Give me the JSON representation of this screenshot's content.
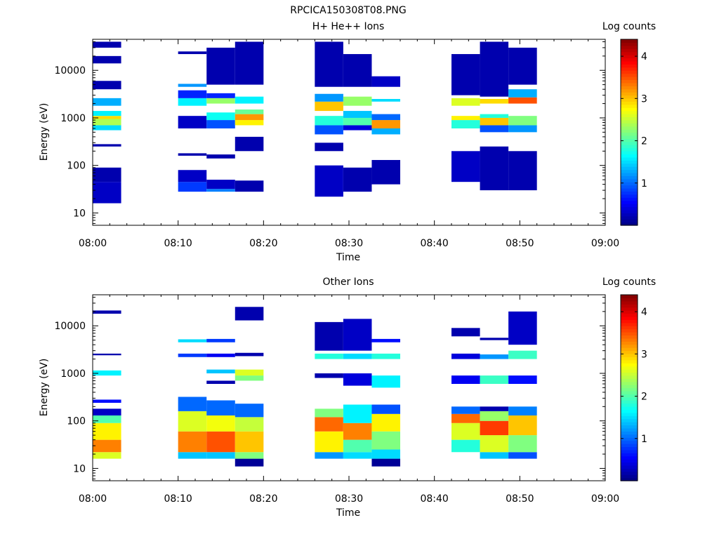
{
  "title": "RPCICA150308T08.PNG",
  "colorbar": {
    "label": "Log counts",
    "ticks": [
      1,
      2,
      3,
      4
    ],
    "range": [
      0,
      4.4
    ]
  },
  "chart_data": [
    {
      "type": "heatmap",
      "title": "H+ He++ Ions",
      "xlabel": "Time",
      "ylabel": "Energy (eV)",
      "yscale": "log",
      "ylim": [
        5.5,
        45000
      ],
      "xlim": [
        "08:00",
        "09:00"
      ],
      "xticks": [
        "08:00",
        "08:10",
        "08:20",
        "08:30",
        "08:40",
        "08:50",
        "09:00"
      ],
      "yticks": [
        10,
        100,
        1000,
        10000
      ],
      "time_bins": [
        {
          "start": "08:00:00",
          "end": "08:03:20",
          "bands": [
            [
              16,
              45,
              0.3
            ],
            [
              45,
              90,
              0.2
            ],
            [
              250,
              280,
              0.2
            ],
            [
              550,
              700,
              1.5
            ],
            [
              700,
              950,
              2.4
            ],
            [
              950,
              1100,
              2.9
            ],
            [
              1100,
              1400,
              1.6
            ],
            [
              1800,
              2600,
              1.3
            ],
            [
              4000,
              6000,
              0.2
            ],
            [
              14000,
              20000,
              0.2
            ],
            [
              30000,
              40000,
              0.2
            ]
          ]
        },
        {
          "start": "08:10:00",
          "end": "08:13:20",
          "bands": [
            [
              28,
              45,
              0.8
            ],
            [
              45,
              80,
              0.3
            ],
            [
              160,
              180,
              0.2
            ],
            [
              600,
              1100,
              0.3
            ],
            [
              1800,
              2600,
              1.6
            ],
            [
              2600,
              3800,
              0.7
            ],
            [
              4500,
              5200,
              1.2
            ],
            [
              22000,
              25000,
              0.2
            ]
          ]
        },
        {
          "start": "08:13:20",
          "end": "08:16:40",
          "bands": [
            [
              28,
              32,
              1.1
            ],
            [
              32,
              50,
              0.3
            ],
            [
              140,
              170,
              0.2
            ],
            [
              600,
              900,
              0.9
            ],
            [
              900,
              1300,
              1.7
            ],
            [
              2000,
              2600,
              2.3
            ],
            [
              2600,
              3300,
              0.7
            ],
            [
              5000,
              30000,
              0.2
            ]
          ]
        },
        {
          "start": "08:16:40",
          "end": "08:20:00",
          "bands": [
            [
              28,
              48,
              0.2
            ],
            [
              200,
              400,
              0.2
            ],
            [
              700,
              900,
              2.8
            ],
            [
              900,
              1200,
              3.2
            ],
            [
              1200,
              1500,
              2.1
            ],
            [
              2000,
              2800,
              1.6
            ],
            [
              5000,
              40000,
              0.2
            ]
          ]
        },
        {
          "start": "08:26:00",
          "end": "08:29:20",
          "bands": [
            [
              22,
              100,
              0.3
            ],
            [
              200,
              300,
              0.2
            ],
            [
              450,
              700,
              0.9
            ],
            [
              700,
              1100,
              1.8
            ],
            [
              1400,
              2200,
              3.0
            ],
            [
              2200,
              3200,
              1.2
            ],
            [
              4500,
              40000,
              0.2
            ]
          ]
        },
        {
          "start": "08:29:20",
          "end": "08:32:40",
          "bands": [
            [
              28,
              90,
              0.2
            ],
            [
              550,
              700,
              0.4
            ],
            [
              700,
              1000,
              2.0
            ],
            [
              1000,
              1400,
              1.4
            ],
            [
              1800,
              2800,
              2.3
            ],
            [
              4500,
              22000,
              0.2
            ]
          ]
        },
        {
          "start": "08:32:40",
          "end": "08:36:00",
          "bands": [
            [
              40,
              130,
              0.2
            ],
            [
              450,
              600,
              1.3
            ],
            [
              600,
              900,
              3.2
            ],
            [
              900,
              1200,
              1.0
            ],
            [
              2200,
              2500,
              1.5
            ],
            [
              4500,
              7500,
              0.3
            ]
          ]
        },
        {
          "start": "08:42:00",
          "end": "08:45:20",
          "bands": [
            [
              45,
              200,
              0.3
            ],
            [
              600,
              900,
              1.8
            ],
            [
              900,
              1100,
              2.8
            ],
            [
              1800,
              2600,
              2.6
            ],
            [
              3000,
              22000,
              0.2
            ]
          ]
        },
        {
          "start": "08:45:20",
          "end": "08:48:40",
          "bands": [
            [
              30,
              250,
              0.2
            ],
            [
              500,
              700,
              0.9
            ],
            [
              700,
              1000,
              3.0
            ],
            [
              1000,
              1200,
              1.8
            ],
            [
              2000,
              2500,
              2.9
            ],
            [
              2800,
              40000,
              0.2
            ]
          ]
        },
        {
          "start": "08:48:40",
          "end": "08:52:00",
          "bands": [
            [
              30,
              200,
              0.2
            ],
            [
              500,
              700,
              1.2
            ],
            [
              700,
              1100,
              2.2
            ],
            [
              2000,
              2700,
              3.5
            ],
            [
              2700,
              4000,
              1.3
            ],
            [
              5000,
              30000,
              0.2
            ]
          ]
        }
      ]
    },
    {
      "type": "heatmap",
      "title": "Other Ions",
      "xlabel": "Time",
      "ylabel": "Energy (eV)",
      "yscale": "log",
      "ylim": [
        5.5,
        45000
      ],
      "xlim": [
        "08:00",
        "09:00"
      ],
      "xticks": [
        "08:00",
        "08:10",
        "08:20",
        "08:30",
        "08:40",
        "08:50",
        "09:00"
      ],
      "yticks": [
        10,
        100,
        1000,
        10000
      ],
      "time_bins": [
        {
          "start": "08:00:00",
          "end": "08:03:20",
          "bands": [
            [
              16,
              22,
              2.6
            ],
            [
              22,
              40,
              3.3
            ],
            [
              40,
              90,
              2.8
            ],
            [
              90,
              130,
              2.0
            ],
            [
              130,
              180,
              0.3
            ],
            [
              240,
              280,
              0.6
            ],
            [
              900,
              1150,
              1.6
            ],
            [
              2400,
              2600,
              0.2
            ],
            [
              18000,
              21000,
              0.2
            ]
          ]
        },
        {
          "start": "08:10:00",
          "end": "08:13:20",
          "bands": [
            [
              16,
              22,
              1.4
            ],
            [
              22,
              60,
              3.3
            ],
            [
              60,
              160,
              2.6
            ],
            [
              160,
              320,
              1.0
            ],
            [
              2200,
              2600,
              0.8
            ],
            [
              4500,
              5200,
              1.5
            ]
          ]
        },
        {
          "start": "08:13:20",
          "end": "08:16:40",
          "bands": [
            [
              16,
              22,
              1.4
            ],
            [
              22,
              60,
              3.5
            ],
            [
              60,
              130,
              2.7
            ],
            [
              130,
              270,
              1.0
            ],
            [
              600,
              700,
              0.2
            ],
            [
              1000,
              1200,
              1.4
            ],
            [
              2200,
              2600,
              0.5
            ],
            [
              4500,
              5300,
              0.8
            ]
          ]
        },
        {
          "start": "08:16:40",
          "end": "08:20:00",
          "bands": [
            [
              11,
              16,
              0.1
            ],
            [
              16,
              22,
              2.2
            ],
            [
              22,
              60,
              3.0
            ],
            [
              60,
              120,
              2.5
            ],
            [
              120,
              230,
              1.0
            ],
            [
              700,
              900,
              2.2
            ],
            [
              900,
              1200,
              2.6
            ],
            [
              2300,
              2700,
              0.2
            ],
            [
              13000,
              25000,
              0.2
            ]
          ]
        },
        {
          "start": "08:26:00",
          "end": "08:29:20",
          "bands": [
            [
              16,
              22,
              1.2
            ],
            [
              22,
              60,
              2.8
            ],
            [
              60,
              120,
              3.4
            ],
            [
              120,
              180,
              2.2
            ],
            [
              800,
              1000,
              0.2
            ],
            [
              2000,
              2600,
              1.8
            ],
            [
              3000,
              12000,
              0.2
            ]
          ]
        },
        {
          "start": "08:29:20",
          "end": "08:32:40",
          "bands": [
            [
              16,
              22,
              1.5
            ],
            [
              22,
              40,
              2.0
            ],
            [
              40,
              90,
              3.3
            ],
            [
              90,
              220,
              1.6
            ],
            [
              550,
              1000,
              0.4
            ],
            [
              2000,
              2600,
              1.5
            ],
            [
              3000,
              14000,
              0.3
            ]
          ]
        },
        {
          "start": "08:32:40",
          "end": "08:36:00",
          "bands": [
            [
              11,
              16,
              0.1
            ],
            [
              16,
              25,
              1.5
            ],
            [
              25,
              60,
              2.2
            ],
            [
              60,
              140,
              2.8
            ],
            [
              140,
              220,
              0.9
            ],
            [
              500,
              900,
              1.6
            ],
            [
              2000,
              2600,
              1.8
            ],
            [
              4500,
              5300,
              0.6
            ]
          ]
        },
        {
          "start": "08:42:00",
          "end": "08:45:20",
          "bands": [
            [
              22,
              40,
              1.8
            ],
            [
              40,
              90,
              2.6
            ],
            [
              90,
              140,
              3.4
            ],
            [
              140,
              200,
              1.0
            ],
            [
              600,
              900,
              0.5
            ],
            [
              2000,
              2600,
              0.4
            ],
            [
              6000,
              9000,
              0.2
            ]
          ]
        },
        {
          "start": "08:45:20",
          "end": "08:48:40",
          "bands": [
            [
              16,
              22,
              1.4
            ],
            [
              22,
              50,
              2.6
            ],
            [
              50,
              100,
              3.6
            ],
            [
              100,
              160,
              2.3
            ],
            [
              160,
              200,
              0.2
            ],
            [
              600,
              900,
              1.9
            ],
            [
              2000,
              2500,
              1.2
            ],
            [
              5000,
              5600,
              0.2
            ]
          ]
        },
        {
          "start": "08:48:40",
          "end": "08:52:00",
          "bands": [
            [
              16,
              22,
              0.9
            ],
            [
              22,
              50,
              2.2
            ],
            [
              50,
              130,
              3.0
            ],
            [
              130,
              200,
              1.1
            ],
            [
              600,
              900,
              0.6
            ],
            [
              2000,
              3000,
              1.9
            ],
            [
              4000,
              20000,
              0.3
            ]
          ]
        }
      ]
    }
  ]
}
